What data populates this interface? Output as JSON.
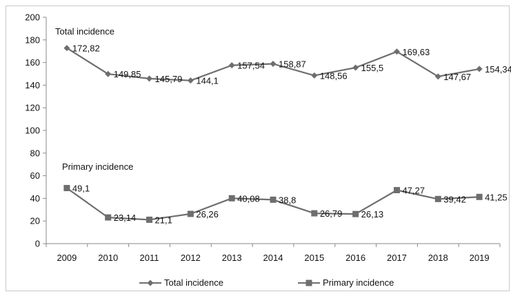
{
  "chart_data": {
    "type": "line",
    "categories": [
      "2009",
      "2010",
      "2011",
      "2012",
      "2013",
      "2014",
      "2015",
      "2016",
      "2017",
      "2018",
      "2019"
    ],
    "ylim": [
      0,
      200
    ],
    "yticks": [
      0,
      20,
      40,
      60,
      80,
      100,
      120,
      140,
      160,
      180,
      200
    ],
    "grid": false,
    "legend_position": "bottom",
    "series": [
      {
        "name": "Total incidence",
        "marker": "diamond",
        "color": "#6e6e6e",
        "values": [
          172.82,
          149.85,
          145.79,
          144.1,
          157.54,
          158.87,
          148.56,
          155.5,
          169.63,
          147.67,
          154.34
        ],
        "labels": [
          "172,82",
          "149,85",
          "145,79",
          "144,1",
          "157,54",
          "158,87",
          "148,56",
          "155,5",
          "169,63",
          "147,67",
          "154,34"
        ]
      },
      {
        "name": "Primary incidence",
        "marker": "square",
        "color": "#6e6e6e",
        "values": [
          49.1,
          23.14,
          21.1,
          26.26,
          40.08,
          38.8,
          26.79,
          26.13,
          47.27,
          39.42,
          41.25
        ],
        "labels": [
          "49,1",
          "23,14",
          "21,1",
          "26,26",
          "40,08",
          "38,8",
          "26,79",
          "26,13",
          "47,27",
          "39,42",
          "41,25"
        ]
      }
    ],
    "annotations": [
      "Total incidence",
      "Primary incidence"
    ]
  }
}
